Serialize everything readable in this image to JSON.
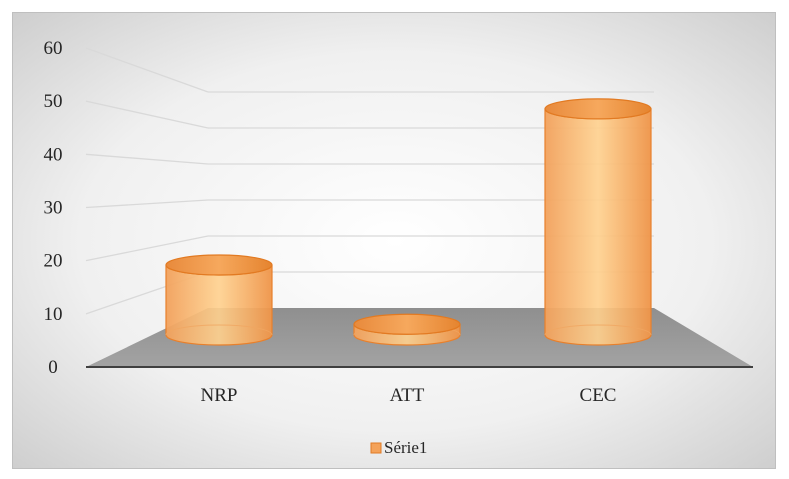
{
  "chart_data": {
    "type": "bar",
    "style": "3d-cylinder",
    "categories": [
      "NRP",
      "ATT",
      "CEC"
    ],
    "series": [
      {
        "name": "Série1",
        "values": [
          13,
          2,
          42
        ],
        "color": "#f4a259"
      }
    ],
    "ylim": [
      0,
      60
    ],
    "yticks": [
      "0",
      "10",
      "20",
      "30",
      "40",
      "50",
      "60"
    ],
    "grid": true,
    "legend": "bottom"
  }
}
